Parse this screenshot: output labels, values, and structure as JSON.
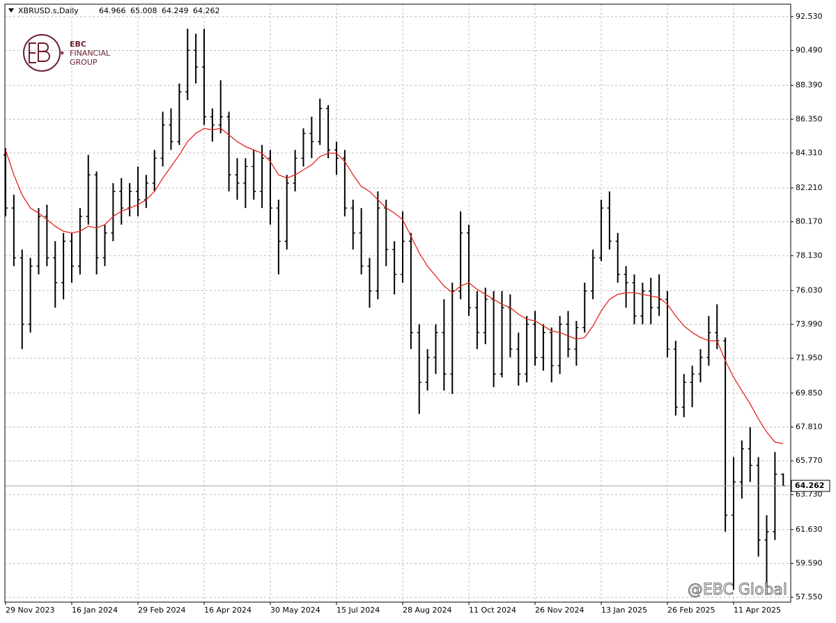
{
  "chart_data": {
    "type": "ohlc",
    "title": "XBRUSD.s,Daily",
    "logo": {
      "brand": "EBC",
      "line1": "FINANCIAL",
      "line2": "GROUP"
    },
    "watermark": "@EBC Global",
    "color": "#000000",
    "grid": true,
    "categories": [
      "29 Nov 2023",
      null,
      null,
      null,
      null,
      null,
      null,
      null,
      "16 Jan 2024",
      null,
      null,
      null,
      null,
      null,
      null,
      null,
      "29 Feb 2024",
      null,
      null,
      null,
      null,
      null,
      null,
      null,
      "16 Apr 2024",
      null,
      null,
      null,
      null,
      null,
      null,
      null,
      "30 May 2024",
      null,
      null,
      null,
      null,
      null,
      null,
      null,
      "15 Jul 2024",
      null,
      null,
      null,
      null,
      null,
      null,
      null,
      "28 Aug 2024",
      null,
      null,
      null,
      null,
      null,
      null,
      null,
      "11 Oct 2024",
      null,
      null,
      null,
      null,
      null,
      null,
      null,
      "26 Nov 2024",
      null,
      null,
      null,
      null,
      null,
      null,
      null,
      "13 Jan 2025",
      null,
      null,
      null,
      null,
      null,
      null,
      null,
      "26 Feb 2025",
      null,
      null,
      null,
      null,
      null,
      null,
      null,
      "11 Apr 2025",
      null,
      null,
      null,
      null,
      null,
      null
    ],
    "open": [
      84.2,
      81.0,
      78.0,
      74.0,
      77.5,
      80.5,
      78.0,
      76.5,
      79.0,
      77.5,
      80.5,
      83.0,
      78.0,
      79.5,
      82.0,
      81.0,
      82.0,
      81.5,
      82.5,
      84.0,
      86.0,
      85.0,
      88.0,
      90.5,
      89.5,
      86.5,
      86.0,
      86.5,
      83.0,
      82.5,
      83.5,
      82.0,
      84.0,
      81.0,
      79.0,
      82.5,
      84.0,
      85.5,
      85.0,
      87.0,
      84.5,
      84.0,
      81.0,
      79.5,
      77.5,
      76.0,
      81.0,
      78.5,
      77.0,
      79.0,
      73.5,
      70.5,
      72.0,
      73.5,
      71.0,
      76.0,
      79.5,
      75.0,
      73.5,
      75.5,
      71.0,
      75.0,
      72.5,
      71.0,
      74.0,
      72.0,
      73.5,
      71.5,
      74.0,
      72.5,
      73.8,
      76.0,
      78.0,
      81.0,
      79.0,
      77.0,
      76.5,
      74.5,
      76.0,
      75.0,
      75.5,
      72.5,
      69.0,
      70.5,
      71.0,
      72.0,
      73.5,
      73.0,
      62.5,
      64.5,
      66.5,
      65.5,
      61.0,
      61.5,
      64.966
    ],
    "high": [
      84.6,
      81.8,
      78.5,
      78.0,
      81.0,
      81.2,
      79.0,
      79.5,
      79.5,
      81.0,
      84.2,
      83.2,
      80.0,
      82.5,
      82.8,
      82.5,
      83.5,
      83.0,
      84.5,
      86.8,
      87.0,
      88.5,
      91.8,
      91.5,
      91.8,
      87.0,
      88.7,
      86.8,
      84.0,
      84.0,
      84.5,
      84.8,
      84.5,
      81.5,
      83.0,
      84.5,
      85.8,
      86.5,
      87.6,
      87.2,
      85.0,
      84.5,
      81.5,
      81.0,
      78.0,
      82.0,
      81.5,
      79.0,
      80.8,
      79.5,
      74.0,
      72.5,
      74.0,
      75.5,
      76.5,
      80.8,
      80.0,
      76.0,
      76.2,
      76.0,
      76.0,
      75.8,
      73.5,
      74.5,
      74.8,
      74.0,
      73.8,
      74.5,
      74.8,
      74.2,
      76.5,
      78.5,
      81.5,
      82.0,
      79.5,
      77.5,
      77.0,
      76.5,
      76.8,
      77.0,
      76.0,
      73.0,
      71.0,
      71.5,
      72.5,
      74.5,
      75.2,
      73.2,
      66.0,
      67.0,
      67.8,
      66.0,
      62.5,
      66.3,
      65.008
    ],
    "low": [
      80.5,
      77.5,
      72.5,
      73.5,
      77.0,
      77.5,
      75.0,
      75.5,
      76.5,
      77.0,
      80.0,
      77.0,
      77.5,
      79.0,
      80.0,
      80.5,
      80.5,
      81.0,
      82.0,
      83.5,
      84.5,
      84.8,
      87.5,
      88.5,
      86.0,
      85.0,
      85.5,
      82.0,
      81.5,
      81.0,
      81.5,
      81.0,
      80.0,
      77.0,
      78.5,
      82.0,
      83.5,
      84.0,
      84.8,
      84.0,
      83.0,
      80.5,
      78.5,
      77.0,
      75.0,
      75.5,
      77.5,
      75.8,
      76.5,
      72.5,
      68.6,
      70.0,
      71.0,
      70.0,
      69.8,
      75.5,
      74.5,
      72.5,
      72.8,
      70.2,
      70.8,
      72.0,
      70.3,
      70.5,
      71.5,
      71.2,
      70.5,
      71.0,
      72.0,
      71.5,
      73.5,
      75.5,
      77.8,
      78.5,
      76.5,
      75.0,
      74.0,
      74.0,
      74.0,
      74.5,
      72.0,
      68.5,
      68.4,
      69.0,
      70.5,
      71.5,
      72.5,
      61.5,
      58.0,
      63.5,
      64.5,
      60.0,
      57.8,
      61.0,
      64.249
    ],
    "close": [
      81.0,
      78.0,
      74.0,
      77.5,
      80.5,
      78.0,
      76.5,
      79.0,
      77.5,
      80.5,
      83.0,
      78.0,
      79.5,
      82.0,
      81.0,
      82.0,
      81.5,
      82.5,
      84.0,
      86.0,
      85.0,
      88.0,
      90.5,
      89.5,
      86.5,
      86.0,
      86.5,
      83.0,
      82.5,
      83.5,
      82.0,
      84.0,
      81.0,
      79.0,
      82.5,
      84.0,
      85.5,
      85.0,
      87.0,
      84.5,
      84.0,
      81.0,
      79.5,
      77.5,
      76.0,
      81.0,
      78.5,
      77.0,
      79.0,
      73.5,
      70.5,
      72.0,
      73.5,
      71.0,
      76.0,
      79.5,
      75.0,
      73.5,
      75.5,
      71.0,
      75.0,
      72.5,
      71.0,
      74.0,
      72.0,
      73.5,
      71.5,
      74.0,
      72.5,
      73.8,
      76.0,
      78.0,
      81.0,
      79.0,
      77.0,
      76.5,
      74.5,
      76.0,
      75.0,
      75.5,
      72.5,
      69.0,
      70.5,
      71.0,
      72.0,
      73.5,
      73.0,
      62.5,
      64.5,
      66.5,
      65.5,
      61.0,
      61.5,
      64.97,
      64.262
    ],
    "ma": {
      "color": "#e3231b",
      "values": [
        84.5,
        83.0,
        81.8,
        81.0,
        80.7,
        80.3,
        79.9,
        79.6,
        79.5,
        79.6,
        79.9,
        79.8,
        80.0,
        80.5,
        80.8,
        81.0,
        81.2,
        81.5,
        82.0,
        82.8,
        83.5,
        84.2,
        85.0,
        85.5,
        85.8,
        85.7,
        85.8,
        85.4,
        85.0,
        84.7,
        84.5,
        84.3,
        83.8,
        83.0,
        82.8,
        83.0,
        83.3,
        83.6,
        84.1,
        84.3,
        84.3,
        83.8,
        83.0,
        82.3,
        82.0,
        81.5,
        81.0,
        80.7,
        80.3,
        79.3,
        78.3,
        77.5,
        76.9,
        76.3,
        75.9,
        76.3,
        76.5,
        76.1,
        75.8,
        75.5,
        75.2,
        75.0,
        74.6,
        74.3,
        74.2,
        73.9,
        73.6,
        73.5,
        73.3,
        73.1,
        73.2,
        73.9,
        74.8,
        75.5,
        75.8,
        75.9,
        75.9,
        75.8,
        75.7,
        75.6,
        75.2,
        74.5,
        73.9,
        73.5,
        73.2,
        73.0,
        73.0,
        71.8,
        70.8,
        70.0,
        69.2,
        68.3,
        67.5,
        66.9,
        66.8
      ]
    },
    "ylim": [
      57.26,
      93.28
    ],
    "yticks": [
      {
        "value": 92.53,
        "label": "92.530"
      },
      {
        "value": 90.49,
        "label": "90.490"
      },
      {
        "value": 88.39,
        "label": "88.390"
      },
      {
        "value": 86.35,
        "label": "86.350"
      },
      {
        "value": 84.31,
        "label": "84.310"
      },
      {
        "value": 82.21,
        "label": "82.210"
      },
      {
        "value": 80.17,
        "label": "80.170"
      },
      {
        "value": 78.13,
        "label": "78.130"
      },
      {
        "value": 76.03,
        "label": "76.030"
      },
      {
        "value": 73.99,
        "label": "73.990"
      },
      {
        "value": 71.95,
        "label": "71.950"
      },
      {
        "value": 69.85,
        "label": "69.850"
      },
      {
        "value": 67.81,
        "label": "67.810"
      },
      {
        "value": 65.77,
        "label": "65.770"
      },
      {
        "value": 63.73,
        "label": "63.730"
      },
      {
        "value": 61.63,
        "label": "61.630"
      },
      {
        "value": 59.59,
        "label": "59.590"
      },
      {
        "value": 57.55,
        "label": "57.550"
      }
    ]
  }
}
